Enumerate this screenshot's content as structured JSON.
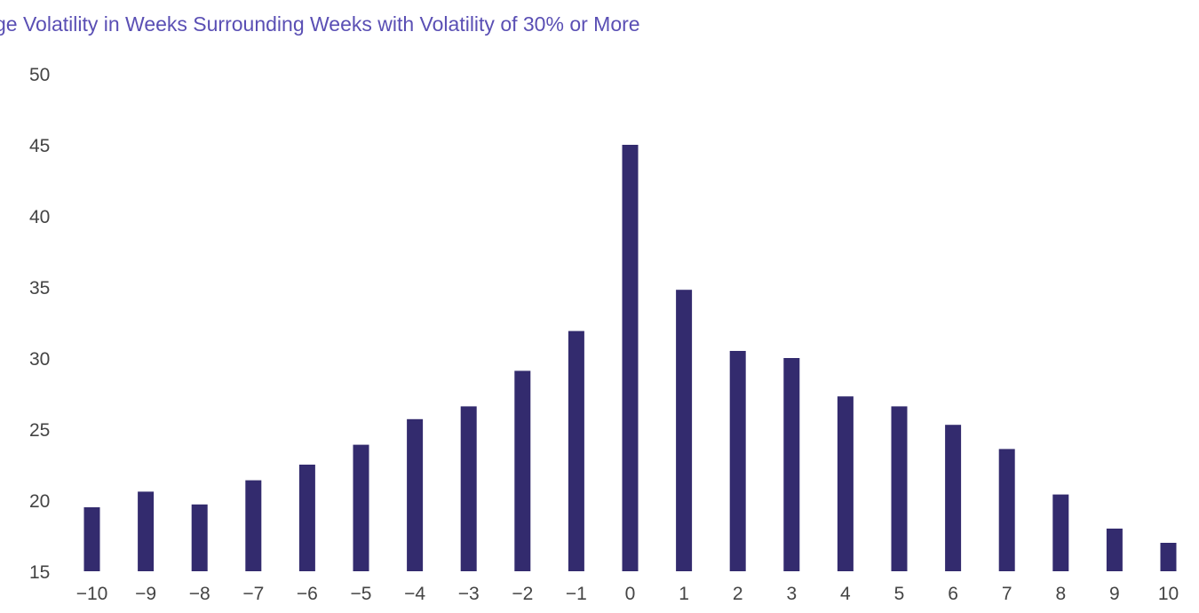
{
  "chart_data": {
    "type": "bar",
    "title": "ge Volatility in Weeks Surrounding Weeks with Volatility of 30% or More",
    "xlabel": "",
    "ylabel": "",
    "ylim": [
      15,
      50
    ],
    "yticks": [
      15,
      20,
      25,
      30,
      35,
      40,
      45,
      50
    ],
    "categories": [
      "−10",
      "−9",
      "−8",
      "−7",
      "−6",
      "−5",
      "−4",
      "−3",
      "−2",
      "−1",
      "0",
      "1",
      "2",
      "3",
      "4",
      "5",
      "6",
      "7",
      "8",
      "9",
      "10"
    ],
    "values": [
      19.5,
      20.6,
      19.7,
      21.4,
      22.5,
      23.9,
      25.7,
      26.6,
      29.1,
      31.9,
      45.0,
      34.8,
      30.5,
      30.0,
      27.3,
      26.6,
      25.3,
      23.6,
      20.4,
      18.0,
      17.0
    ],
    "bar_color": "#332b6e",
    "title_color": "#5a4fb4"
  }
}
